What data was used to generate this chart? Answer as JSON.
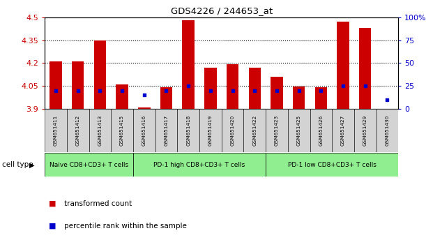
{
  "title": "GDS4226 / 244653_at",
  "samples": [
    "GSM651411",
    "GSM651412",
    "GSM651413",
    "GSM651415",
    "GSM651416",
    "GSM651417",
    "GSM651418",
    "GSM651419",
    "GSM651420",
    "GSM651422",
    "GSM651423",
    "GSM651425",
    "GSM651426",
    "GSM651427",
    "GSM651429",
    "GSM651430"
  ],
  "transformed_count": [
    4.21,
    4.21,
    4.35,
    4.06,
    3.91,
    4.04,
    4.48,
    4.17,
    4.19,
    4.17,
    4.11,
    4.045,
    4.04,
    4.47,
    4.43,
    3.9
  ],
  "percentile_rank": [
    20,
    20,
    20,
    20,
    15,
    20,
    25,
    20,
    20,
    20,
    20,
    20,
    20,
    25,
    25,
    10
  ],
  "y_min": 3.9,
  "y_max": 4.5,
  "y_ticks": [
    3.9,
    4.05,
    4.2,
    4.35,
    4.5
  ],
  "right_y_ticks": [
    0,
    25,
    50,
    75,
    100
  ],
  "right_y_labels": [
    "0",
    "25",
    "50",
    "75",
    "100%"
  ],
  "bar_color": "#CC0000",
  "dot_color": "#0000CC",
  "bar_width": 0.55,
  "group_starts": [
    0,
    4,
    10
  ],
  "group_ends": [
    4,
    10,
    16
  ],
  "group_labels": [
    "Naive CD8+CD3+ T cells",
    "PD-1 high CD8+CD3+ T cells",
    "PD-1 low CD8+CD3+ T cells"
  ],
  "group_color": "#90EE90",
  "sample_box_color": "#D3D3D3",
  "cell_type_label": "cell type",
  "legend_items": [
    {
      "label": "transformed count",
      "color": "#CC0000"
    },
    {
      "label": "percentile rank within the sample",
      "color": "#0000CC"
    }
  ]
}
